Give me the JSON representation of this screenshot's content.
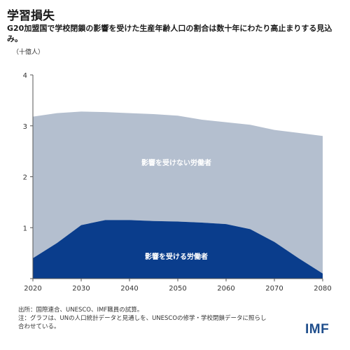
{
  "header": {
    "title": "学習損失",
    "subtitle": "G20加盟国で学校閉鎖の影響を受けた生産年齢人口の割合は数十年にわたり高止まりする見込み。",
    "unit": "（十億人）"
  },
  "footer": {
    "source": "出所：国際連合、UNESCO、IMF職員の試算。",
    "note": "注：グラフは、UNの人口統計データと見通しを、UNESCOの修学・学校閉鎖データに照らし合わせている。"
  },
  "logo": "IMF",
  "colors": {
    "unaffected": "#b4bfcf",
    "affected": "#0a3d8c",
    "axis": "#555555"
  },
  "chart_data": {
    "type": "area",
    "stacked": true,
    "x": [
      2020,
      2025,
      2030,
      2035,
      2040,
      2045,
      2050,
      2055,
      2060,
      2065,
      2070,
      2075,
      2080
    ],
    "xticks": [
      "2020",
      "2030",
      "2040",
      "2050",
      "2060",
      "2070",
      "2080"
    ],
    "yticks": [
      "4",
      "3",
      "2",
      "1"
    ],
    "ylim": [
      0,
      4
    ],
    "series": [
      {
        "name": "影響を受ける労働者",
        "values": [
          0.4,
          0.7,
          1.05,
          1.15,
          1.15,
          1.13,
          1.12,
          1.1,
          1.07,
          0.97,
          0.72,
          0.4,
          0.1
        ]
      },
      {
        "name": "影響を受けない労働者",
        "values": [
          2.78,
          2.55,
          2.23,
          2.12,
          2.1,
          2.1,
          2.08,
          2.02,
          2.0,
          2.05,
          2.2,
          2.46,
          2.7
        ]
      }
    ]
  }
}
